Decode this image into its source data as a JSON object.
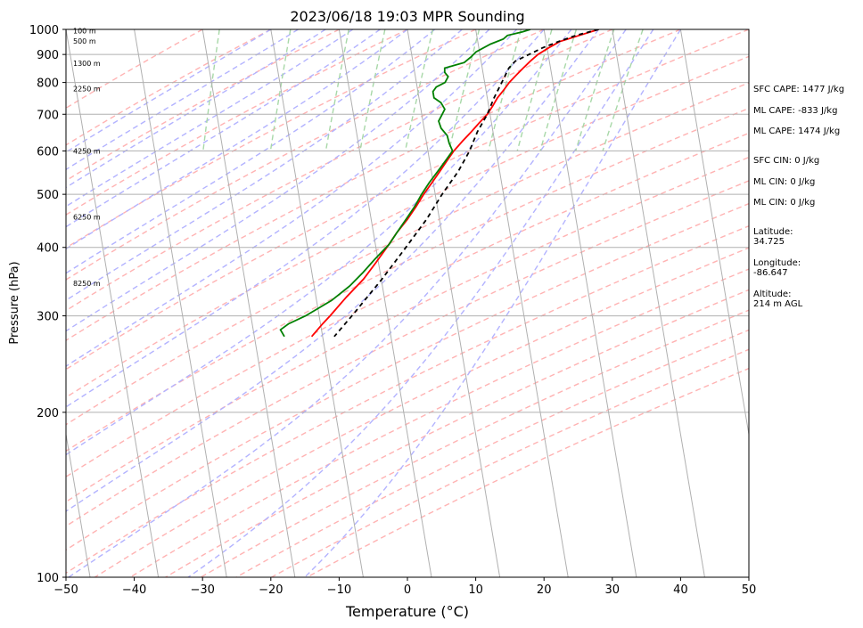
{
  "chart_data": {
    "type": "line",
    "title": "2023/06/18 19:03 MPR Sounding",
    "xlabel": "Temperature (°C)",
    "ylabel": "Pressure (hPa)",
    "xlim": [
      -50,
      50
    ],
    "ylim": [
      1000,
      100
    ],
    "y_scale": "log",
    "x_ticks": [
      "−50",
      "−40",
      "−30",
      "−20",
      "−10",
      "0",
      "10",
      "20",
      "30",
      "40",
      "50"
    ],
    "x_tick_values": [
      -50,
      -40,
      -30,
      -20,
      -10,
      0,
      10,
      20,
      30,
      40,
      50
    ],
    "y_ticks": [
      "1000",
      "900",
      "800",
      "700",
      "600",
      "500",
      "400",
      "300",
      "200",
      "100"
    ],
    "y_tick_values": [
      1000,
      900,
      800,
      700,
      600,
      500,
      400,
      300,
      200,
      100
    ],
    "grid": true,
    "series": [
      {
        "color": "#ff0000",
        "points": [
          [
            1000,
            28
          ],
          [
            975,
            25
          ],
          [
            950,
            22
          ],
          [
            925,
            20.2
          ],
          [
            900,
            18.5
          ],
          [
            875,
            17.2
          ],
          [
            850,
            16
          ],
          [
            825,
            14.8
          ],
          [
            800,
            13.6
          ],
          [
            775,
            12.6
          ],
          [
            750,
            11.5
          ],
          [
            725,
            10.6
          ],
          [
            700,
            9.6
          ],
          [
            675,
            8.2
          ],
          [
            650,
            6.8
          ],
          [
            625,
            5.3
          ],
          [
            600,
            3.8
          ],
          [
            575,
            2.5
          ],
          [
            550,
            1.2
          ],
          [
            525,
            -0.2
          ],
          [
            500,
            -1.7
          ],
          [
            475,
            -3.1
          ],
          [
            450,
            -4.7
          ],
          [
            425,
            -6.6
          ],
          [
            400,
            -8.4
          ],
          [
            375,
            -10.4
          ],
          [
            350,
            -12.6
          ],
          [
            325,
            -15.5
          ],
          [
            300,
            -18.4
          ],
          [
            290,
            -19.7
          ],
          [
            275,
            -21.6
          ]
        ]
      },
      {
        "color": "#008000",
        "points": [
          [
            1000,
            18
          ],
          [
            990,
            16.8
          ],
          [
            975,
            14.5
          ],
          [
            960,
            13.8
          ],
          [
            940,
            11.8
          ],
          [
            910,
            9.5
          ],
          [
            890,
            8.6
          ],
          [
            870,
            7.5
          ],
          [
            850,
            4.5
          ],
          [
            835,
            4.4
          ],
          [
            820,
            4.8
          ],
          [
            800,
            4.2
          ],
          [
            785,
            2.8
          ],
          [
            770,
            2.2
          ],
          [
            750,
            2.2
          ],
          [
            735,
            3.1
          ],
          [
            715,
            3.5
          ],
          [
            700,
            3.0
          ],
          [
            680,
            2.3
          ],
          [
            660,
            2.5
          ],
          [
            640,
            3.2
          ],
          [
            620,
            3.3
          ],
          [
            600,
            3.6
          ],
          [
            575,
            2.3
          ],
          [
            550,
            0.9
          ],
          [
            525,
            -0.6
          ],
          [
            500,
            -2.0
          ],
          [
            475,
            -3.3
          ],
          [
            450,
            -4.9
          ],
          [
            425,
            -6.6
          ],
          [
            405,
            -8.0
          ],
          [
            395,
            -9.0
          ],
          [
            380,
            -10.5
          ],
          [
            360,
            -12.5
          ],
          [
            340,
            -14.8
          ],
          [
            320,
            -17.8
          ],
          [
            300,
            -22.0
          ],
          [
            290,
            -24.7
          ],
          [
            283,
            -26.0
          ],
          [
            275,
            -25.6
          ]
        ]
      },
      {
        "color": "#000000",
        "dashed": true,
        "points": [
          [
            1000,
            28
          ],
          [
            975,
            24.5
          ],
          [
            950,
            21.8
          ],
          [
            925,
            19.3
          ],
          [
            900,
            17.2
          ],
          [
            875,
            15.0
          ],
          [
            850,
            13.9
          ],
          [
            800,
            12.5
          ],
          [
            750,
            11.0
          ],
          [
            700,
            9.6
          ],
          [
            650,
            7.7
          ],
          [
            600,
            6.1
          ],
          [
            550,
            3.9
          ],
          [
            500,
            1.0
          ],
          [
            450,
            -1.9
          ],
          [
            400,
            -5.6
          ],
          [
            350,
            -9.9
          ],
          [
            300,
            -15.2
          ],
          [
            275,
            -18.3
          ]
        ]
      }
    ],
    "height_labels": [
      "8250 m",
      "6250 m",
      "4250 m",
      "2250 m",
      "1300 m",
      "500 m",
      "100 m"
    ],
    "height_label_pressures": [
      344,
      455,
      600,
      780,
      868,
      952,
      995
    ],
    "annotations": [
      "SFC CAPE: 1477 J/kg",
      "ML CAPE: -833 J/kg",
      "ML CAPE: 1474 J/kg",
      "SFC CIN: 0 J/kg",
      "ML CIN: 0 J/kg",
      "ML CIN: 0 J/kg",
      "Latitude:\n34.725",
      "Longitude:\n-86.647",
      "Altitude:\n214 m AGL"
    ],
    "colors": {
      "temperature": "#ff0000",
      "dewpoint": "#008000",
      "parcel": "#000000",
      "isotherm": "#b0b0b0",
      "dry_adiabat": "#ffb3b3",
      "moist_adiabat": "#b3b3ff",
      "mixing_ratio": "#a8d8a8"
    }
  }
}
